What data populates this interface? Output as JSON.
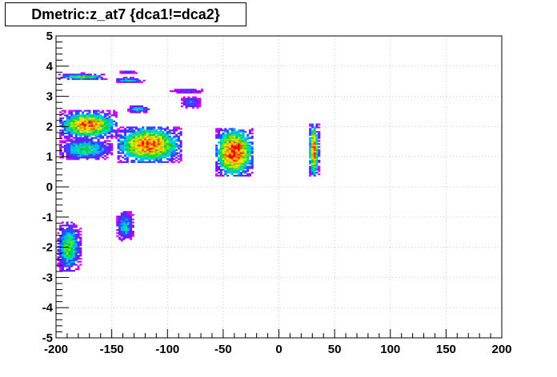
{
  "chart_data": {
    "type": "heatmap",
    "title": "Dmetric:z_at7 {dca1!=dca2}",
    "xlabel": "",
    "ylabel": "",
    "xlim": [
      -200,
      200
    ],
    "ylim": [
      -5,
      5
    ],
    "x_ticks": [
      -200,
      -150,
      -100,
      -50,
      0,
      50,
      100,
      150,
      200
    ],
    "y_ticks": [
      -5,
      -4,
      -3,
      -2,
      -1,
      0,
      1,
      2,
      3,
      4,
      5
    ],
    "x_tick_labels": [
      "-200",
      "-150",
      "-100",
      "-50",
      "0",
      "50",
      "100",
      "150",
      "200"
    ],
    "y_tick_labels": [
      "-5",
      "-4",
      "-3",
      "-2",
      "-1",
      "0",
      "1",
      "2",
      "3",
      "4",
      "5"
    ],
    "grid": true,
    "palette": [
      "#d400ff",
      "#6a1cff",
      "#2a4dff",
      "#00b6ff",
      "#00e0b0",
      "#00d23c",
      "#7be000",
      "#d8f000",
      "#ffd200",
      "#ff9a00",
      "#ff4a00",
      "#ff0000"
    ],
    "clusters": [
      {
        "x_range": [
          -198,
          -155
        ],
        "y_range": [
          3.55,
          3.75
        ],
        "peak": 0.55
      },
      {
        "x_range": [
          -148,
          -121
        ],
        "y_range": [
          3.45,
          3.62
        ],
        "peak": 0.35
      },
      {
        "x_range": [
          -147,
          -125
        ],
        "y_range": [
          3.75,
          3.85
        ],
        "peak": 0.15
      },
      {
        "x_range": [
          -197,
          -145
        ],
        "y_range": [
          1.6,
          2.5
        ],
        "peak": 0.85
      },
      {
        "x_range": [
          -197,
          -150
        ],
        "y_range": [
          0.9,
          1.6
        ],
        "peak": 0.45
      },
      {
        "x_range": [
          -145,
          -88
        ],
        "y_range": [
          0.8,
          2.0
        ],
        "peak": 0.9
      },
      {
        "x_range": [
          -136,
          -116
        ],
        "y_range": [
          2.45,
          2.7
        ],
        "peak": 0.35
      },
      {
        "x_range": [
          -98,
          -66
        ],
        "y_range": [
          3.1,
          3.25
        ],
        "peak": 0.2
      },
      {
        "x_range": [
          -88,
          -70
        ],
        "y_range": [
          2.6,
          3.0
        ],
        "peak": 0.25
      },
      {
        "x_range": [
          -57,
          -23
        ],
        "y_range": [
          0.35,
          1.95
        ],
        "peak": 1.0
      },
      {
        "x_range": [
          27,
          36
        ],
        "y_range": [
          0.35,
          2.1
        ],
        "peak": 0.9
      },
      {
        "x_range": [
          -199,
          -178
        ],
        "y_range": [
          -2.8,
          -1.2
        ],
        "peak": 0.5
      },
      {
        "x_range": [
          -146,
          -130
        ],
        "y_range": [
          -1.8,
          -0.8
        ],
        "peak": 0.35
      }
    ]
  }
}
